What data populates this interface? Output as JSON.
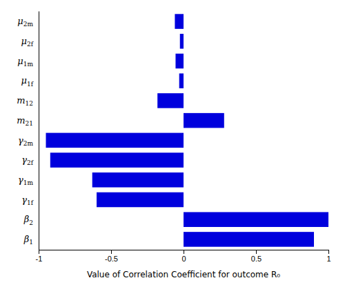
{
  "chart_data": {
    "type": "bar",
    "orientation": "horizontal",
    "xlabel": "Value of Correlation Coefficient for outcome R₀",
    "categories": [
      "β1",
      "β2",
      "γ1f",
      "γ1m",
      "γ2f",
      "γ2m",
      "m21",
      "m12",
      "μ1f",
      "μ1m",
      "μ2f",
      "μ2m"
    ],
    "values": [
      0.9,
      1.0,
      -0.6,
      -0.63,
      -0.92,
      -0.95,
      0.28,
      -0.18,
      -0.03,
      -0.055,
      -0.025,
      -0.06
    ],
    "color": "#0000dd",
    "xlim": [
      -1,
      1
    ],
    "xticks": [
      -1,
      -0.5,
      0,
      0.5,
      1
    ],
    "grid": false
  }
}
